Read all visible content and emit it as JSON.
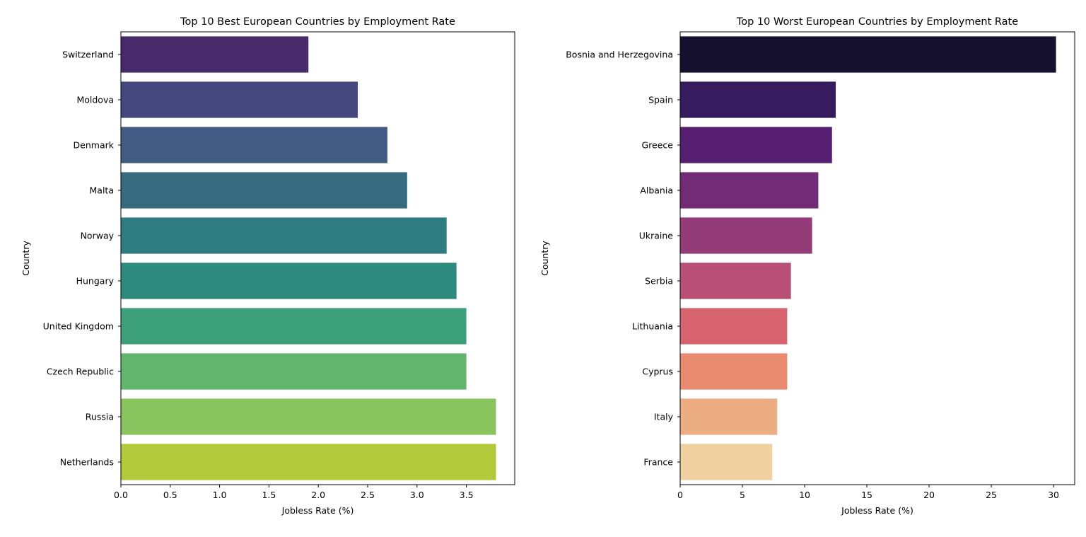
{
  "chart_data": [
    {
      "type": "bar",
      "orientation": "horizontal",
      "title": "Top 10 Best European Countries by Employment Rate",
      "xlabel": "Jobless Rate (%)",
      "ylabel": "Country",
      "categories": [
        "Switzerland",
        "Moldova",
        "Denmark",
        "Malta",
        "Norway",
        "Hungary",
        "United Kingdom",
        "Czech Republic",
        "Russia",
        "Netherlands"
      ],
      "values": [
        1.9,
        2.4,
        2.7,
        2.9,
        3.3,
        3.4,
        3.5,
        3.5,
        3.8,
        3.8
      ],
      "colors": [
        "#472a6a",
        "#47477f",
        "#415b83",
        "#376c80",
        "#2e7b80",
        "#2f8a7e",
        "#3ca17a",
        "#61b56c",
        "#8ac45e",
        "#b2ca3a"
      ],
      "xlim": [
        0,
        3.99
      ],
      "xticks": [
        "0.0",
        "0.5",
        "1.0",
        "1.5",
        "2.0",
        "2.5",
        "3.0",
        "3.5"
      ],
      "grid": false,
      "legend": "none"
    },
    {
      "type": "bar",
      "orientation": "horizontal",
      "title": "Top 10 Worst European Countries by Employment Rate",
      "xlabel": "Jobless Rate (%)",
      "ylabel": "Country",
      "categories": [
        "Bosnia and Herzegovina",
        "Spain",
        "Greece",
        "Albania",
        "Ukraine",
        "Serbia",
        "Lithuania",
        "Cyprus",
        "Italy",
        "France"
      ],
      "values": [
        30.2,
        12.5,
        12.2,
        11.1,
        10.6,
        8.9,
        8.6,
        8.6,
        7.8,
        7.4
      ],
      "colors": [
        "#16112e",
        "#361b5e",
        "#571f72",
        "#722c75",
        "#933c78",
        "#b94f74",
        "#d6636e",
        "#e88a6d",
        "#edad83",
        "#f0d19f"
      ],
      "xlim": [
        0,
        31.7
      ],
      "xticks": [
        "0",
        "5",
        "10",
        "15",
        "20",
        "25",
        "30"
      ],
      "grid": false,
      "legend": "none"
    }
  ]
}
